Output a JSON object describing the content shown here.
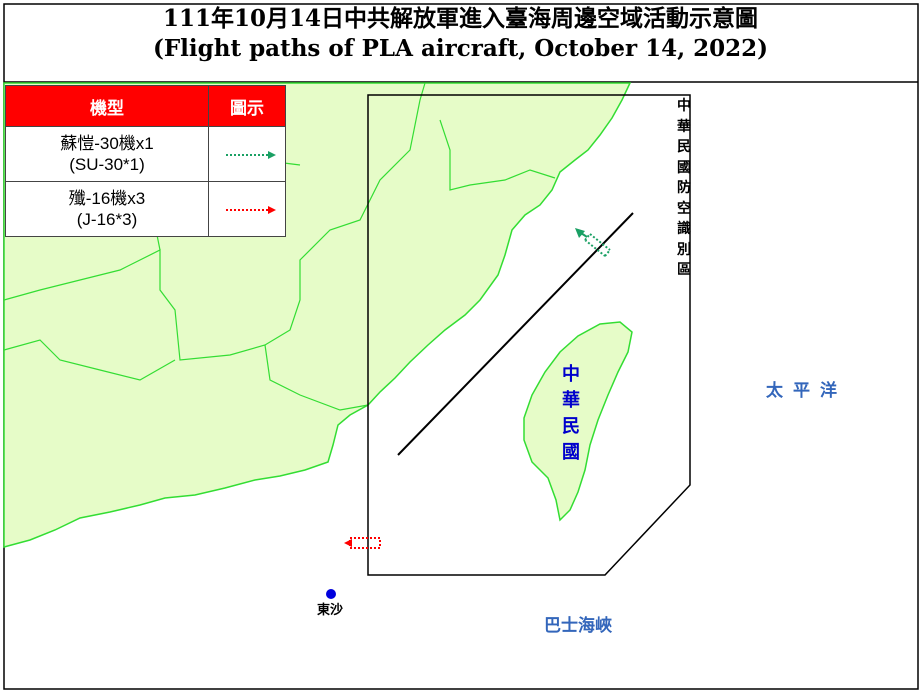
{
  "title": {
    "line1": "111年10月14日中共解放軍進入臺海周邊空域活動示意圖",
    "line2": "(Flight paths of PLA aircraft, October 14, 2022)"
  },
  "legend": {
    "header_type": "機型",
    "header_symbol": "圖示",
    "rows": [
      {
        "name_zh": "蘇愷-30機x1",
        "name_en": "(SU-30*1)",
        "color": "#1aa064"
      },
      {
        "name_zh": "殲-16機x3",
        "name_en": "(J-16*3)",
        "color": "#ff0000"
      }
    ]
  },
  "labels": {
    "adiz": "中華民國防空識別區",
    "taiwan": "中華民國",
    "pacific": "太平洋",
    "bashi": "巴士海峽",
    "dongsha": "東沙"
  },
  "colors": {
    "land": "#e6fcc8",
    "coast": "#33dd33",
    "label_blue": "#3366bb",
    "taiwan_label": "#0000cc"
  }
}
